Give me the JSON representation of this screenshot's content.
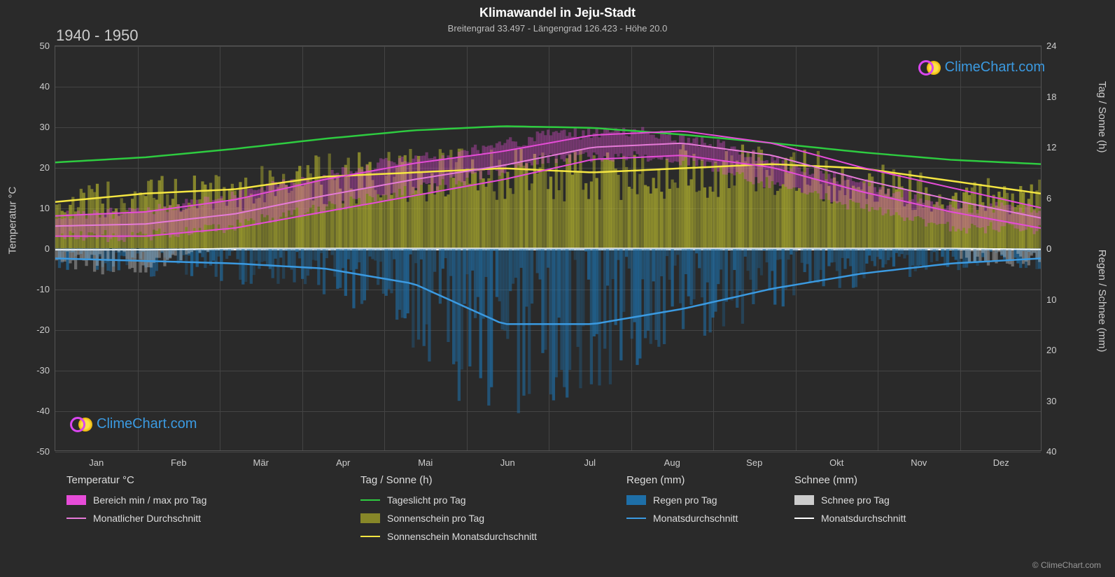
{
  "title": "Klimawandel in Jeju-Stadt",
  "subtitle": "Breitengrad 33.497 - Längengrad 126.423 - Höhe 20.0",
  "period": "1940 - 1950",
  "brand": "ClimeChart.com",
  "brand_color": "#3b9ae1",
  "copyright": "© ClimeChart.com",
  "background_color": "#2a2a2a",
  "chart": {
    "months": [
      "Jan",
      "Feb",
      "Mär",
      "Apr",
      "Mai",
      "Jun",
      "Jul",
      "Aug",
      "Sep",
      "Okt",
      "Nov",
      "Dez"
    ],
    "temp_axis": {
      "min": -50,
      "max": 50,
      "step": 10,
      "label": "Temperatur °C"
    },
    "sun_axis": {
      "min": 0,
      "max": 24,
      "step": 6,
      "label": "Tag / Sonne (h)"
    },
    "rain_axis": {
      "min": 0,
      "max": 40,
      "step": 10,
      "label": "Regen / Schnee (mm)"
    },
    "grid_color": "#444",
    "zero_color": "#eee",
    "series": {
      "temp_range": {
        "color": "#e64cd8",
        "min": [
          3,
          3,
          5,
          9,
          13,
          17,
          22,
          23,
          20,
          14,
          9,
          5
        ],
        "max": [
          8,
          9,
          12,
          17,
          21,
          24,
          28,
          29,
          26,
          20,
          15,
          10
        ]
      },
      "temp_avg": {
        "color": "#e67ad8",
        "values": [
          5.5,
          6,
          8.5,
          13,
          17,
          20.5,
          25,
          26,
          23,
          17,
          12,
          7.5
        ]
      },
      "daylight": {
        "color": "#2ecc40",
        "values": [
          10.2,
          10.8,
          11.8,
          13,
          14,
          14.5,
          14.3,
          13.5,
          12.5,
          11.4,
          10.5,
          10
        ]
      },
      "sunshine_bars": {
        "color": "#b5b52e",
        "opacity": 0.6
      },
      "sunshine_avg": {
        "color": "#f5e642",
        "values": [
          5.5,
          6.5,
          7,
          8.5,
          9,
          9.5,
          9,
          9.5,
          10,
          9.5,
          8,
          6.5
        ]
      },
      "rain_bars": {
        "color": "#1e6fa8",
        "opacity": 0.55
      },
      "rain_avg": {
        "color": "#3b9ae1",
        "values": [
          2,
          2.5,
          3,
          4,
          7,
          15,
          15,
          12,
          8,
          5,
          3,
          2
        ]
      },
      "snow_bars": {
        "color": "#cccccc",
        "opacity": 0.4
      },
      "snow_avg": {
        "color": "#ffffff",
        "values": [
          0.3,
          0.3,
          0,
          0,
          0,
          0,
          0,
          0,
          0,
          0,
          0,
          0.2
        ]
      }
    }
  },
  "legend": {
    "cols": [
      {
        "x": 0,
        "header": "Temperatur °C",
        "items": [
          {
            "swatch": "block",
            "color": "#e64cd8",
            "label": "Bereich min / max pro Tag"
          },
          {
            "swatch": "line",
            "color": "#e67ad8",
            "label": "Monatlicher Durchschnitt"
          }
        ]
      },
      {
        "x": 420,
        "header": "Tag / Sonne (h)",
        "items": [
          {
            "swatch": "line",
            "color": "#2ecc40",
            "label": "Tageslicht pro Tag"
          },
          {
            "swatch": "block",
            "color": "#878728",
            "label": "Sonnenschein pro Tag"
          },
          {
            "swatch": "line",
            "color": "#f5e642",
            "label": "Sonnenschein Monatsdurchschnitt"
          }
        ]
      },
      {
        "x": 800,
        "header": "Regen (mm)",
        "items": [
          {
            "swatch": "block",
            "color": "#1e6fa8",
            "label": "Regen pro Tag"
          },
          {
            "swatch": "line",
            "color": "#3b9ae1",
            "label": "Monatsdurchschnitt"
          }
        ]
      },
      {
        "x": 1040,
        "header": "Schnee (mm)",
        "items": [
          {
            "swatch": "block",
            "color": "#cccccc",
            "label": "Schnee pro Tag"
          },
          {
            "swatch": "line",
            "color": "#ffffff",
            "label": "Monatsdurchschnitt"
          }
        ]
      }
    ]
  }
}
